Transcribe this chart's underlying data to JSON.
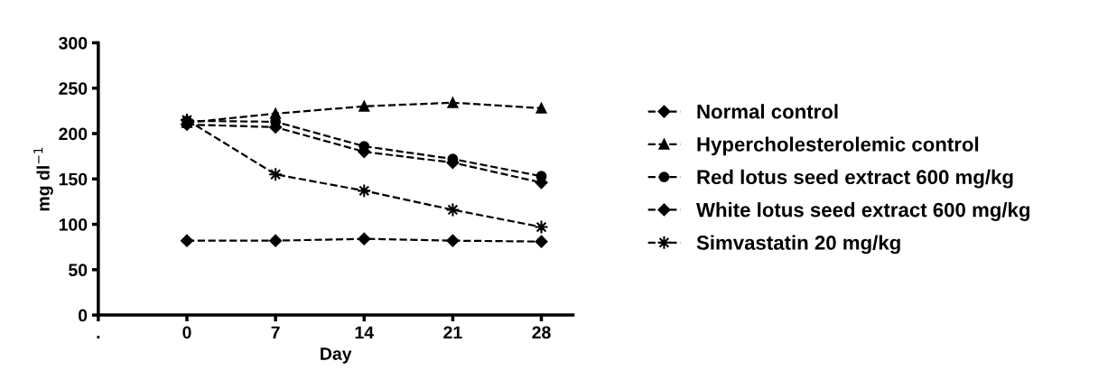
{
  "chart_data": {
    "type": "line",
    "xlabel": "Day",
    "ylabel": "mg dl$^{−1}$",
    "x": [
      0,
      7,
      14,
      21,
      28
    ],
    "xlim": [
      -7,
      30.5
    ],
    "xticks": [
      {
        "value": -7,
        "label": "."
      },
      0,
      7,
      14,
      21,
      28
    ],
    "ylim": [
      0,
      300
    ],
    "yticks": [
      0,
      50,
      100,
      150,
      200,
      250,
      300
    ],
    "grid": false,
    "legend": "right",
    "line_style": "dashed",
    "series": [
      {
        "name": "Normal control",
        "color": "#000000",
        "marker": "diamond",
        "values": [
          82,
          82,
          84,
          82,
          81
        ]
      },
      {
        "name": "Hypercholesterolemic control",
        "color": "#000000",
        "marker": "triangle",
        "values": [
          212,
          222,
          230,
          234,
          228
        ]
      },
      {
        "name": "Red lotus seed extract 600 mg/kg",
        "color": "#000000",
        "marker": "circle",
        "values": [
          214,
          213,
          186,
          172,
          153
        ]
      },
      {
        "name": "White lotus seed extract 600 mg/kg",
        "color": "#000000",
        "marker": "diamond",
        "values": [
          210,
          207,
          180,
          168,
          146
        ]
      },
      {
        "name": "Simvastatin 20 mg/kg",
        "color": "#000000",
        "marker": "star",
        "values": [
          215,
          155,
          137,
          116,
          97
        ]
      }
    ]
  }
}
